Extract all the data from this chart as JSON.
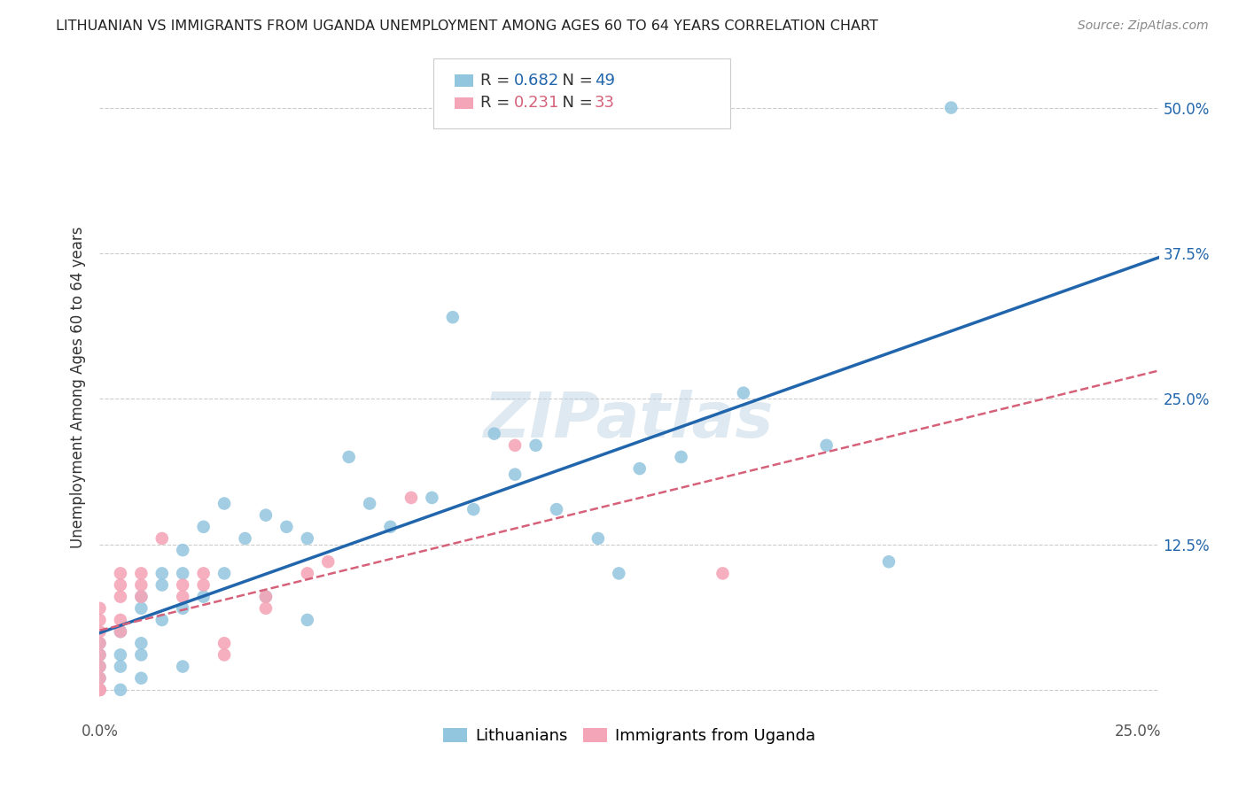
{
  "title": "LITHUANIAN VS IMMIGRANTS FROM UGANDA UNEMPLOYMENT AMONG AGES 60 TO 64 YEARS CORRELATION CHART",
  "source": "Source: ZipAtlas.com",
  "ylabel": "Unemployment Among Ages 60 to 64 years",
  "xlim": [
    0.0,
    0.255
  ],
  "ylim": [
    -0.025,
    0.545
  ],
  "xticks": [
    0.0,
    0.05,
    0.1,
    0.15,
    0.2,
    0.25
  ],
  "xticklabels": [
    "0.0%",
    "",
    "",
    "",
    "",
    "25.0%"
  ],
  "yticks": [
    0.0,
    0.125,
    0.25,
    0.375,
    0.5
  ],
  "yticklabels_right": [
    "",
    "12.5%",
    "25.0%",
    "37.5%",
    "50.0%"
  ],
  "blue_R": 0.682,
  "blue_N": 49,
  "pink_R": 0.231,
  "pink_N": 33,
  "blue_color": "#92C5DE",
  "pink_color": "#F4A6B8",
  "blue_line_color": "#2166AC",
  "pink_line_color": "#D6617A",
  "blue_scatter_x": [
    0.0,
    0.0,
    0.0,
    0.0,
    0.0,
    0.005,
    0.005,
    0.005,
    0.005,
    0.01,
    0.01,
    0.01,
    0.01,
    0.01,
    0.015,
    0.015,
    0.015,
    0.02,
    0.02,
    0.02,
    0.02,
    0.025,
    0.025,
    0.03,
    0.03,
    0.035,
    0.04,
    0.04,
    0.045,
    0.05,
    0.05,
    0.06,
    0.065,
    0.07,
    0.08,
    0.085,
    0.09,
    0.095,
    0.1,
    0.105,
    0.11,
    0.12,
    0.125,
    0.13,
    0.14,
    0.155,
    0.175,
    0.19,
    0.205
  ],
  "blue_scatter_y": [
    0.02,
    0.03,
    0.04,
    0.01,
    0.0,
    0.05,
    0.03,
    0.02,
    0.0,
    0.07,
    0.08,
    0.04,
    0.03,
    0.01,
    0.1,
    0.09,
    0.06,
    0.12,
    0.1,
    0.07,
    0.02,
    0.14,
    0.08,
    0.16,
    0.1,
    0.13,
    0.15,
    0.08,
    0.14,
    0.13,
    0.06,
    0.2,
    0.16,
    0.14,
    0.165,
    0.32,
    0.155,
    0.22,
    0.185,
    0.21,
    0.155,
    0.13,
    0.1,
    0.19,
    0.2,
    0.255,
    0.21,
    0.11,
    0.5
  ],
  "pink_scatter_x": [
    0.0,
    0.0,
    0.0,
    0.0,
    0.0,
    0.0,
    0.0,
    0.0,
    0.0,
    0.0,
    0.0,
    0.005,
    0.005,
    0.005,
    0.005,
    0.005,
    0.01,
    0.01,
    0.01,
    0.015,
    0.02,
    0.02,
    0.025,
    0.025,
    0.03,
    0.03,
    0.04,
    0.04,
    0.05,
    0.055,
    0.075,
    0.1,
    0.15
  ],
  "pink_scatter_y": [
    0.0,
    0.0,
    0.01,
    0.02,
    0.03,
    0.04,
    0.05,
    0.06,
    0.07,
    0.0,
    0.0,
    0.05,
    0.06,
    0.08,
    0.09,
    0.1,
    0.08,
    0.09,
    0.1,
    0.13,
    0.08,
    0.09,
    0.09,
    0.1,
    0.03,
    0.04,
    0.07,
    0.08,
    0.1,
    0.11,
    0.165,
    0.21,
    0.1
  ]
}
